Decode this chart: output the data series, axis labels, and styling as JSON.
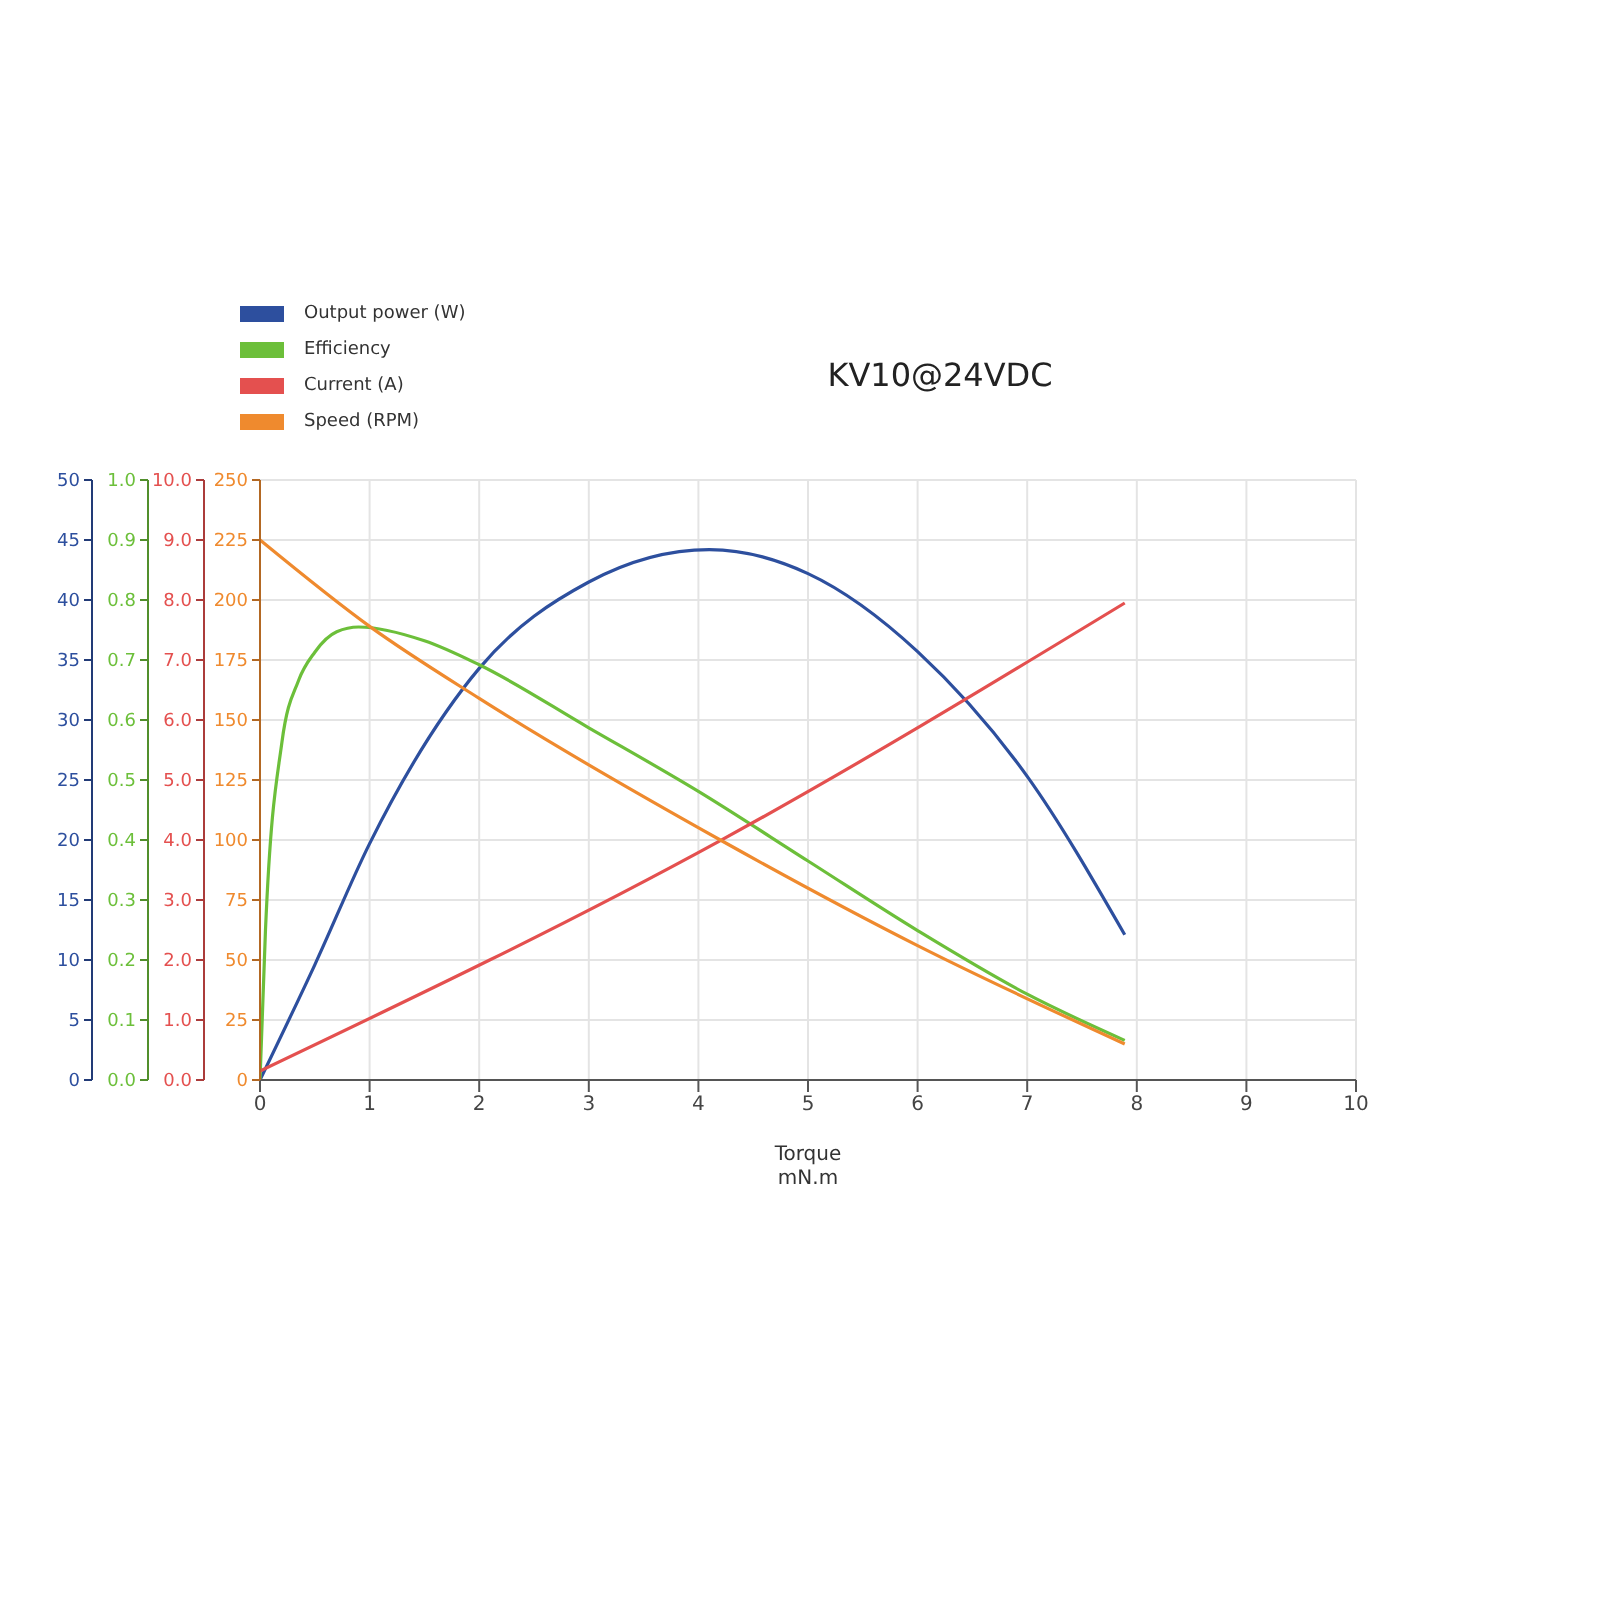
{
  "chart_data": [
    {
      "type": "line",
      "title": "KV10@24VDC",
      "xlabel": "Torque mN.m",
      "xlim": [
        0,
        10
      ],
      "xticks": [
        0,
        1,
        2,
        3,
        4,
        5,
        6,
        7,
        8,
        9,
        10
      ],
      "ylim": [
        0,
        50
      ],
      "yticks": [
        0,
        5,
        10,
        15,
        20,
        25,
        30,
        35,
        40,
        45,
        50
      ],
      "y2lim": [
        0,
        1
      ],
      "y2ticks": [
        {
          "value": 0,
          "label": "0.0"
        },
        {
          "value": 0.1,
          "label": "0.1"
        },
        {
          "value": 0.2,
          "label": "0.2"
        },
        {
          "value": 0.3,
          "label": "0.3"
        },
        {
          "value": 0.4,
          "label": "0.4"
        },
        {
          "value": 0.5,
          "label": "0.5"
        },
        {
          "value": 0.6,
          "label": "0.6"
        },
        {
          "value": 0.7,
          "label": "0.7"
        },
        {
          "value": 0.8,
          "label": "0.8"
        },
        {
          "value": 0.9,
          "label": "0.9"
        },
        {
          "value": 1,
          "label": "1.0"
        }
      ],
      "y3lim": [
        0,
        10
      ],
      "y3ticks": [
        {
          "value": 0,
          "label": "0.0"
        },
        {
          "value": 1,
          "label": "1.0"
        },
        {
          "value": 2,
          "label": "2.0"
        },
        {
          "value": 3,
          "label": "3.0"
        },
        {
          "value": 4,
          "label": "4.0"
        },
        {
          "value": 5,
          "label": "5.0"
        },
        {
          "value": 6,
          "label": "6.0"
        },
        {
          "value": 7,
          "label": "7.0"
        },
        {
          "value": 8,
          "label": "8.0"
        },
        {
          "value": 9,
          "label": "9.0"
        },
        {
          "value": 10,
          "label": "10.0"
        }
      ],
      "grid": true,
      "legend": "top left",
      "series": [
        {
          "name": "Output power (W)",
          "color": "#2d4f9e",
          "x": [
            0,
            0.5,
            1,
            2,
            3,
            4.1,
            5,
            6,
            7,
            7.89
          ],
          "values": [
            0,
            9.6,
            19.7,
            34.3,
            41.5,
            44.2,
            42.2,
            35.7,
            25.3,
            12.1
          ]
        },
        {
          "name": "Efficiency",
          "color": "#6cbf3a",
          "axis": "y2",
          "x": [
            0,
            0.05,
            0.2,
            0.35,
            0.5,
            0.7,
            0.9,
            1.5,
            2,
            3,
            4,
            5,
            6,
            7,
            7.89
          ],
          "values": [
            0,
            0.25,
            0.563,
            0.665,
            0.713,
            0.747,
            0.755,
            0.732,
            0.692,
            0.587,
            0.481,
            0.365,
            0.249,
            0.143,
            0.066
          ]
        },
        {
          "name": "Current (A)",
          "color": "#e4504f",
          "axis": "y3",
          "x": [
            0,
            4.2,
            7.89
          ],
          "values": [
            0.15,
            3.99,
            7.95
          ]
        }
      ]
    },
    {
      "type": "line",
      "xlim": [
        0,
        10
      ],
      "ylim": [
        0,
        250
      ],
      "yticks": [
        0,
        25,
        50,
        75,
        100,
        125,
        150,
        175,
        200,
        225,
        250
      ],
      "tick_labels": "y",
      "series": [
        {
          "name": "Speed (RPM)",
          "color": "#ef8a2e",
          "x": [
            0,
            1,
            2,
            4.2,
            6,
            7.89
          ],
          "values": [
            225,
            189,
            159,
            100,
            56,
            15
          ]
        }
      ]
    }
  ]
}
